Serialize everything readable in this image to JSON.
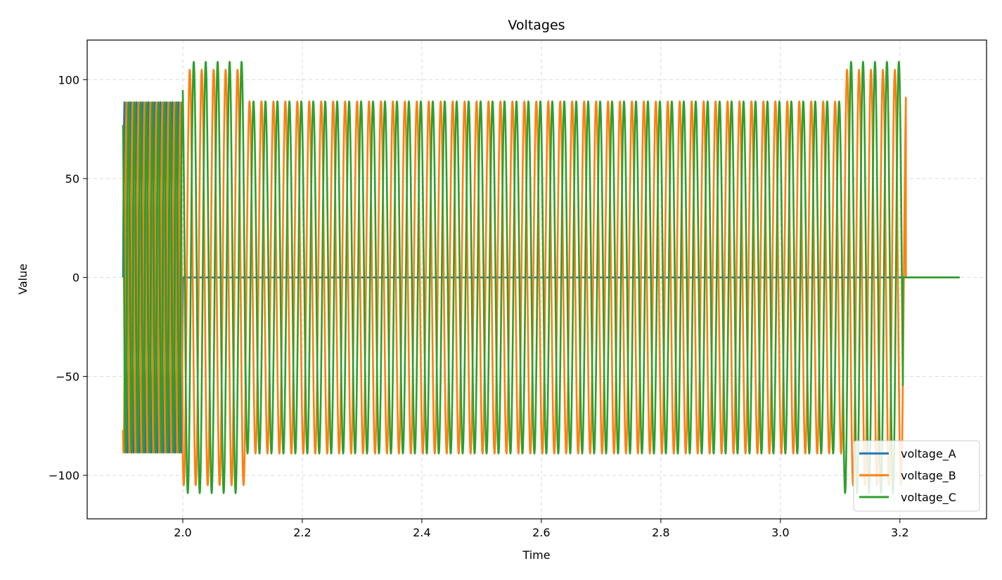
{
  "chart_data": {
    "type": "line",
    "title": "Voltages",
    "xlabel": "Time",
    "ylabel": "Value",
    "xlim": [
      1.84,
      3.345
    ],
    "ylim": [
      -122,
      120
    ],
    "xticks": [
      2.0,
      2.2,
      2.4,
      2.6,
      2.8,
      3.0,
      3.2
    ],
    "xtick_labels": [
      "2.0",
      "2.2",
      "2.4",
      "2.6",
      "2.8",
      "3.0",
      "3.2"
    ],
    "yticks": [
      -100,
      -50,
      0,
      50,
      100
    ],
    "ytick_labels": [
      "−100",
      "−50",
      "0",
      "50",
      "100"
    ],
    "grid": true,
    "legend_position": "bottom-right",
    "series": [
      {
        "name": "voltage_A",
        "color": "#1f77b4",
        "segments": [
          {
            "x0": 1.9,
            "x1": 2.0,
            "amplitude": 89,
            "frequency": 100,
            "phase_deg": 0
          },
          {
            "x0": 2.0,
            "x1": 3.3,
            "amplitude": 0,
            "frequency": 50,
            "phase_deg": 0
          }
        ]
      },
      {
        "name": "voltage_B",
        "color": "#ff7f0e",
        "segments": [
          {
            "x0": 1.9,
            "x1": 2.0,
            "amplitude": 89,
            "frequency": 100,
            "phase_deg": -120
          },
          {
            "x0": 2.0,
            "x1": 2.105,
            "amplitude": 105,
            "frequency": 50,
            "phase_deg": -120
          },
          {
            "x0": 2.105,
            "x1": 3.105,
            "amplitude": 89,
            "frequency": 50,
            "phase_deg": -120
          },
          {
            "x0": 3.105,
            "x1": 3.21,
            "amplitude": 105,
            "frequency": 50,
            "phase_deg": -120
          },
          {
            "x0": 3.21,
            "x1": 3.3,
            "amplitude": 0,
            "frequency": 50,
            "phase_deg": 0
          }
        ]
      },
      {
        "name": "voltage_C",
        "color": "#2ca02c",
        "segments": [
          {
            "x0": 1.9,
            "x1": 2.0,
            "amplitude": 89,
            "frequency": 100,
            "phase_deg": 120
          },
          {
            "x0": 2.0,
            "x1": 2.105,
            "amplitude": 109,
            "frequency": 50,
            "phase_deg": 120
          },
          {
            "x0": 2.105,
            "x1": 3.105,
            "amplitude": 89,
            "frequency": 50,
            "phase_deg": 120
          },
          {
            "x0": 3.105,
            "x1": 3.205,
            "amplitude": 109,
            "frequency": 50,
            "phase_deg": 120
          },
          {
            "x0": 3.205,
            "x1": 3.3,
            "amplitude": 0,
            "frequency": 50,
            "phase_deg": 0
          }
        ]
      }
    ]
  }
}
